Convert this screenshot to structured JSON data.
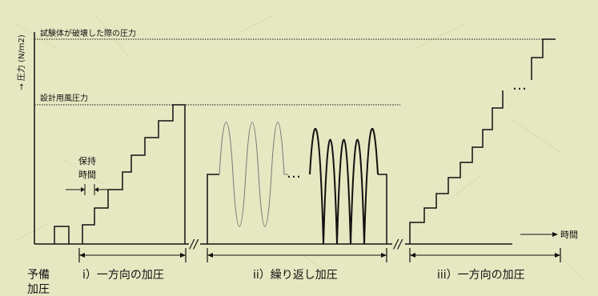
{
  "diagram": {
    "y_axis_label": "→ 圧力 (N/m2)",
    "x_axis_label": "時間",
    "failure_pressure_label": "試験体が破壊した際の圧力",
    "design_pressure_label": "設計用風圧力",
    "hold_time_label_line1": "保持",
    "hold_time_label_line2": "時間",
    "ellipsis": "…",
    "break_mark": "//",
    "phase_pre_line1": "予備",
    "phase_pre_line2": "加圧",
    "phase_1": "i）一方向の加圧",
    "phase_2": "ii）繰り返し加圧",
    "phase_3": "iii）一方向の加圧"
  },
  "colors": {
    "background": "#e6e8c2",
    "line": "#111111",
    "cycle_light": "#777777"
  }
}
